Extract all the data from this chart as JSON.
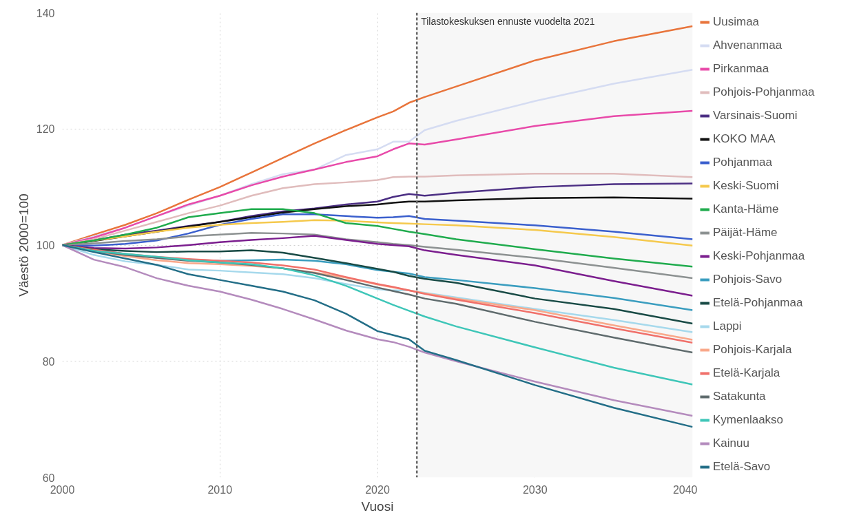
{
  "chart_data": {
    "type": "line",
    "xlabel": "Vuosi",
    "ylabel": "Väestö 2000=100",
    "x": [
      2000,
      2002,
      2004,
      2006,
      2008,
      2010,
      2012,
      2014,
      2016,
      2018,
      2020,
      2021,
      2022,
      2023,
      2025,
      2030,
      2035,
      2040
    ],
    "xlim": [
      2000,
      2040
    ],
    "xticks": [
      2000,
      2010,
      2020,
      2030,
      2040
    ],
    "ylim": [
      60,
      140
    ],
    "yticks": [
      60,
      80,
      100,
      120,
      140
    ],
    "grid": true,
    "legend": "right",
    "ref_lines": [
      {
        "axis": "x",
        "value": 2022.5,
        "label": "Tilastokeskuksen ennuste vuodelta 2021",
        "color": "#666666",
        "line_style": "dashed"
      }
    ],
    "bands": [
      {
        "axis": "x",
        "from": 2022.5,
        "to": 2040,
        "color": "#f7f7f7"
      }
    ],
    "series": [
      {
        "name": "Uusimaa",
        "color": "#e8743b",
        "values": [
          100,
          101.8,
          103.5,
          105.5,
          107.8,
          110,
          112.5,
          115,
          117.5,
          119.8,
          122,
          123,
          124.5,
          125.5,
          127.3,
          131.8,
          135.1,
          137.7
        ]
      },
      {
        "name": "Ahvenanmaa",
        "color": "#d5dcf2",
        "values": [
          100,
          101.5,
          103,
          105,
          106.8,
          108.5,
          110.5,
          112.2,
          113,
          115.5,
          116.5,
          117.8,
          117.8,
          119.8,
          121.4,
          124.8,
          127.8,
          130.2
        ]
      },
      {
        "name": "Pirkanmaa",
        "color": "#e84aa9",
        "values": [
          100,
          101.3,
          103,
          105,
          107,
          108.5,
          110.3,
          111.8,
          113,
          114.3,
          115.3,
          116.5,
          117.5,
          117.3,
          118.2,
          120.5,
          122.2,
          123.1
        ]
      },
      {
        "name": "Pohjois-Pohjanmaa",
        "color": "#e0bcbc",
        "values": [
          100,
          101,
          102.5,
          104,
          105.5,
          106.8,
          108.5,
          109.8,
          110.5,
          110.8,
          111.2,
          111.7,
          111.8,
          111.8,
          112,
          112.3,
          112.3,
          111.7
        ]
      },
      {
        "name": "Varsinais-Suomi",
        "color": "#4b2e83",
        "values": [
          100,
          100.8,
          101.8,
          102.5,
          103.3,
          104,
          105,
          105.8,
          106.3,
          107,
          107.5,
          108.3,
          108.8,
          108.5,
          109,
          110,
          110.5,
          110.6
        ]
      },
      {
        "name": "KOKO MAA",
        "color": "#111111",
        "values": [
          100,
          100.7,
          101.5,
          102.3,
          103.2,
          104,
          104.8,
          105.6,
          106.2,
          106.7,
          107,
          107.3,
          107.5,
          107.5,
          107.7,
          108.1,
          108.2,
          108
        ]
      },
      {
        "name": "Pohjanmaa",
        "color": "#3a5fcd",
        "values": [
          100,
          99.9,
          100.2,
          100.8,
          102,
          103.5,
          104.5,
          105.3,
          105.3,
          105,
          104.7,
          104.8,
          105,
          104.5,
          104.2,
          103.4,
          102.3,
          101
        ]
      },
      {
        "name": "Keski-Suomi",
        "color": "#f5c94d",
        "values": [
          100,
          100.8,
          101.5,
          102.3,
          103,
          103.5,
          103.8,
          104,
          104.3,
          104.2,
          103.9,
          103.8,
          103.7,
          103.6,
          103.4,
          102.6,
          101.4,
          99.9
        ]
      },
      {
        "name": "Kanta-Häme",
        "color": "#1fab4d",
        "values": [
          100,
          100.8,
          101.8,
          103,
          104.8,
          105.5,
          106.2,
          106.2,
          105.5,
          103.8,
          103.3,
          102.8,
          102.3,
          101.9,
          101,
          99.3,
          97.7,
          96.3
        ]
      },
      {
        "name": "Päijät-Häme",
        "color": "#8c9191",
        "values": [
          100,
          100.3,
          100.7,
          101,
          101.5,
          101.8,
          102.1,
          102,
          101.8,
          101,
          100.5,
          100.2,
          100,
          99.7,
          99.2,
          97.8,
          96.1,
          94.3
        ]
      },
      {
        "name": "Keski-Pohjanmaa",
        "color": "#7b1e8e",
        "values": [
          100,
          99.5,
          99.4,
          99.6,
          100,
          100.5,
          100.9,
          101.2,
          101.6,
          100.9,
          100.2,
          100,
          99.8,
          99.1,
          98.3,
          96.5,
          93.8,
          91.3
        ]
      },
      {
        "name": "Pohjois-Savo",
        "color": "#3a9dbf",
        "values": [
          100,
          99.2,
          98.5,
          97.8,
          97.5,
          97.3,
          97.4,
          97.5,
          97.3,
          96.7,
          95.7,
          95.4,
          95.1,
          94.5,
          94,
          92.6,
          90.9,
          88.8
        ]
      },
      {
        "name": "Etelä-Pohjanmaa",
        "color": "#184a45",
        "values": [
          100,
          99.3,
          99,
          98.8,
          98.9,
          98.9,
          99.1,
          98.7,
          97.8,
          96.9,
          95.9,
          95.4,
          94.7,
          94.2,
          93.5,
          90.8,
          89,
          86.5
        ]
      },
      {
        "name": "Lappi",
        "color": "#a6d9ec",
        "values": [
          100,
          98.3,
          97.2,
          96.6,
          95.8,
          95.6,
          95.3,
          95,
          94.3,
          93.3,
          92.4,
          92.2,
          92.2,
          91.8,
          91,
          89,
          87.1,
          85
        ]
      },
      {
        "name": "Pohjois-Karjala",
        "color": "#f9a88a",
        "values": [
          100,
          98.9,
          98.1,
          97.4,
          96.9,
          96.7,
          96.4,
          96,
          95.3,
          94.4,
          93.2,
          92.7,
          92.2,
          91.7,
          90.8,
          88.8,
          86.2,
          83.7
        ]
      },
      {
        "name": "Etelä-Karjala",
        "color": "#f0706a",
        "values": [
          100,
          99.2,
          98.5,
          98,
          97.6,
          97.3,
          97,
          96.5,
          95.8,
          94.5,
          93.3,
          92.8,
          92.2,
          91.6,
          90.6,
          88.3,
          85.7,
          83.2
        ]
      },
      {
        "name": "Satakunta",
        "color": "#5f6b6d",
        "values": [
          100,
          99,
          98.3,
          97.8,
          97.3,
          97,
          96.6,
          96,
          95.2,
          94,
          92.7,
          92.1,
          91.5,
          90.8,
          89.9,
          86.8,
          84.1,
          81.5
        ]
      },
      {
        "name": "Kymenlaakso",
        "color": "#3ec6b8",
        "values": [
          100,
          99,
          98.5,
          98,
          97.4,
          97,
          96.7,
          96,
          94.8,
          93,
          90.8,
          89.7,
          88.7,
          87.7,
          86,
          82.4,
          78.9,
          76
        ]
      },
      {
        "name": "Kainuu",
        "color": "#b48bbd",
        "values": [
          100,
          97.5,
          96.2,
          94.3,
          93,
          92,
          90.6,
          89,
          87.2,
          85.3,
          83.8,
          83.3,
          82.5,
          81.5,
          80,
          76.5,
          73.3,
          70.6
        ]
      },
      {
        "name": "Etelä-Savo",
        "color": "#236e87",
        "values": [
          100,
          98.8,
          97.7,
          96.6,
          95,
          94,
          93,
          92,
          90.5,
          88.2,
          85.2,
          84.5,
          83.8,
          81.8,
          80.2,
          75.9,
          72,
          68.7
        ]
      }
    ]
  }
}
